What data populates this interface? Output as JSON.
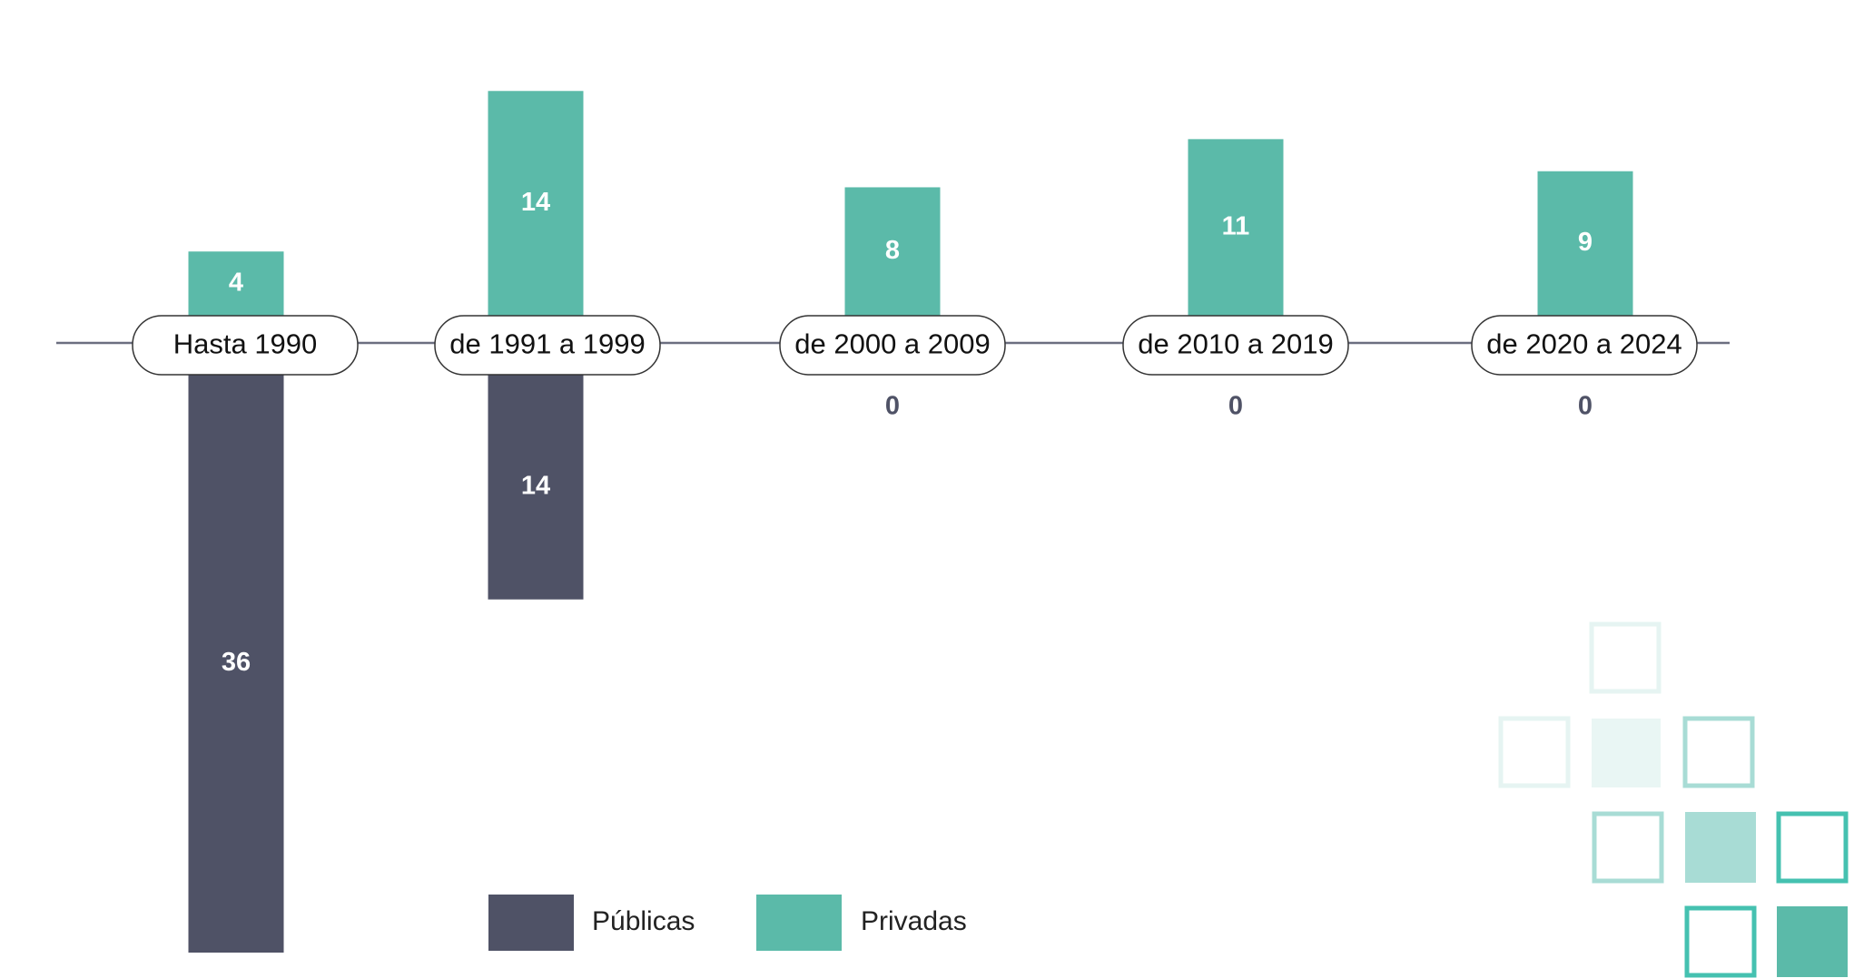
{
  "chart_data": {
    "type": "bar",
    "categories": [
      "Hasta 1990",
      "de 1991 a 1999",
      "de 2000 a 2009",
      "de 2010 a 2019",
      "de 2020 a 2024"
    ],
    "series": [
      {
        "name": "Públicas",
        "color": "#4f5266",
        "values": [
          36,
          14,
          0,
          0,
          0
        ]
      },
      {
        "name": "Privadas",
        "color": "#5bbaa9",
        "values": [
          4,
          14,
          8,
          11,
          9
        ]
      }
    ]
  }
}
